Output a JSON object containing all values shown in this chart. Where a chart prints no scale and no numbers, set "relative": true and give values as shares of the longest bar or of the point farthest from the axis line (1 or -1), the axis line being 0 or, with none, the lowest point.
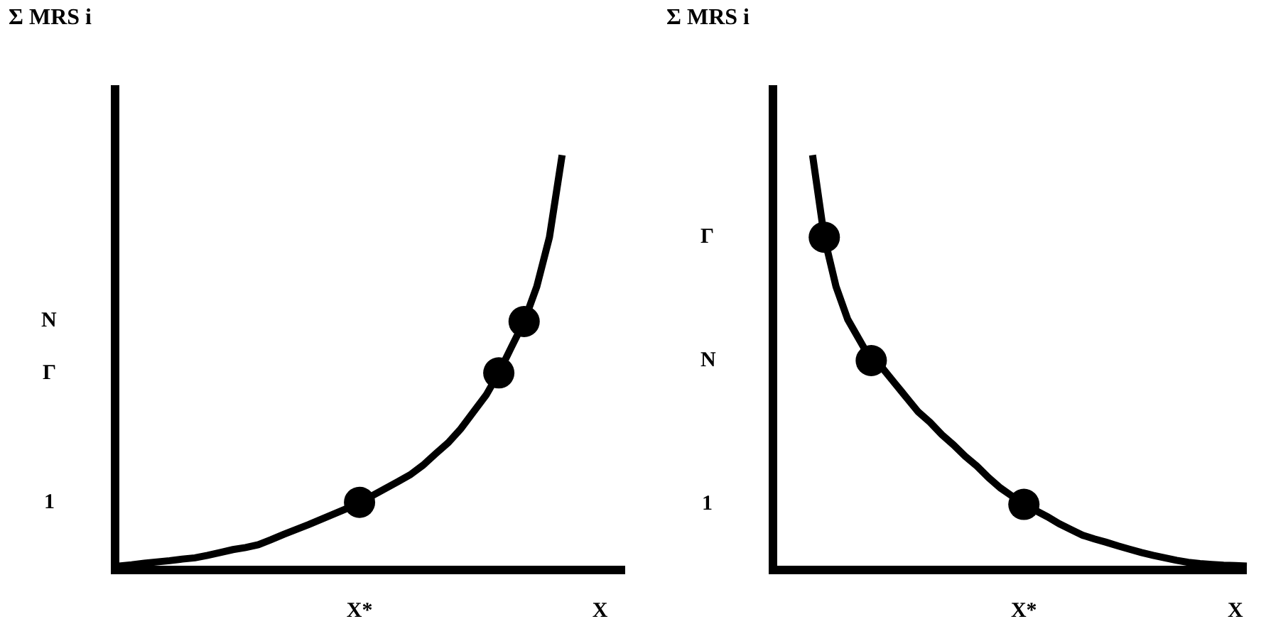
{
  "chart_data": [
    {
      "type": "line",
      "relative": true,
      "ylabel": "Σ MRS i",
      "categories": [
        null,
        null,
        null,
        null,
        null,
        null,
        null,
        null,
        null,
        null,
        null,
        null,
        null,
        null,
        null,
        null,
        null,
        null,
        null,
        "X*",
        null,
        null,
        null,
        null,
        null,
        null,
        null,
        null,
        null,
        null,
        null,
        null,
        null,
        null,
        null,
        null,
        null,
        null,
        "X",
        null,
        null
      ],
      "annotations": [
        "1",
        "Γ",
        "N"
      ],
      "series": [
        {
          "marker": "none",
          "color": "#000000",
          "values": [
            0,
            0.003,
            0.007,
            0.01,
            0.013,
            0.017,
            0.02,
            0.026,
            0.033,
            0.04,
            0.045,
            0.052,
            0.064,
            0.077,
            0.089,
            0.101,
            0.114,
            0.127,
            0.14,
            0.155,
            0.171,
            0.188,
            0.205,
            0.222,
            0.245,
            0.273,
            0.3,
            0.334,
            0.375,
            0.416,
            0.47,
            0.533,
            0.595,
            0.68,
            0.8,
            1,
            null,
            null,
            null,
            null,
            null
          ]
        },
        {
          "type": "scatter",
          "marker": "circle",
          "color": "#000000",
          "values": [
            null,
            null,
            null,
            null,
            null,
            null,
            null,
            null,
            null,
            null,
            null,
            null,
            null,
            null,
            null,
            null,
            null,
            null,
            null,
            0.155,
            null,
            null,
            null,
            null,
            null,
            null,
            null,
            null,
            null,
            null,
            0.47,
            null,
            0.595,
            null,
            null,
            null,
            null,
            null,
            null,
            null,
            null
          ]
        }
      ]
    },
    {
      "type": "line",
      "relative": true,
      "ylabel": "Σ MRS i",
      "categories": [
        null,
        null,
        null,
        null,
        null,
        null,
        null,
        null,
        null,
        null,
        null,
        null,
        null,
        null,
        null,
        null,
        null,
        null,
        null,
        null,
        null,
        "X*",
        null,
        null,
        null,
        null,
        null,
        null,
        null,
        null,
        null,
        null,
        null,
        null,
        null,
        null,
        null,
        null,
        null,
        "X",
        null
      ],
      "annotations": [
        "Γ",
        "N",
        "1"
      ],
      "series": [
        {
          "marker": "none",
          "color": "#000000",
          "values": [
            null,
            null,
            null,
            1,
            0.8,
            0.68,
            0.6,
            0.55,
            0.5,
            0.48,
            0.445,
            0.41,
            0.375,
            0.35,
            0.32,
            0.295,
            0.267,
            0.243,
            0.215,
            0.19,
            0.17,
            0.15,
            0.135,
            0.12,
            0.103,
            0.089,
            0.075,
            0.066,
            0.058,
            0.049,
            0.041,
            0.033,
            0.026,
            0.02,
            0.014,
            0.009,
            0.006,
            0.004,
            0.002,
            0.001,
            0
          ]
        },
        {
          "type": "scatter",
          "marker": "circle",
          "color": "#000000",
          "values": [
            null,
            null,
            null,
            null,
            0.8,
            null,
            null,
            null,
            0.5,
            null,
            null,
            null,
            null,
            null,
            null,
            null,
            null,
            null,
            null,
            null,
            null,
            0.15,
            null,
            null,
            null,
            null,
            null,
            null,
            null,
            null,
            null,
            null,
            null,
            null,
            null,
            null,
            null,
            null,
            null,
            null,
            null
          ]
        }
      ]
    }
  ]
}
